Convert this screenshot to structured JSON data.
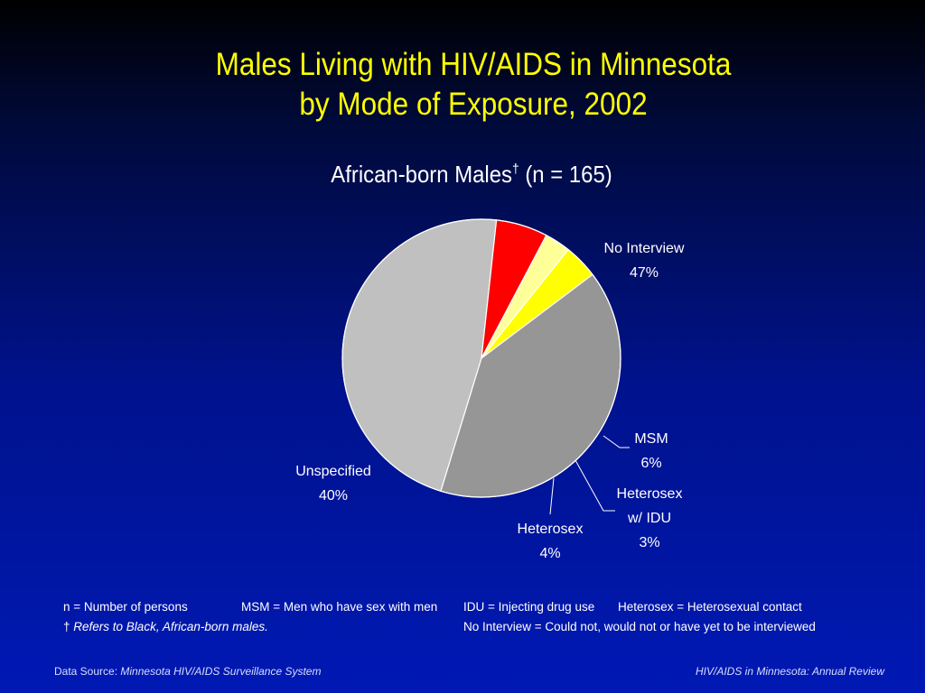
{
  "title_line1": "Males Living with HIV/AIDS in Minnesota",
  "title_line2": "by Mode of Exposure, 2002",
  "subtitle_main": "African-born Males",
  "subtitle_mark": "†",
  "subtitle_n": " (n = 165)",
  "chart_data": {
    "type": "pie",
    "title": "Males Living with HIV/AIDS in Minnesota by Mode of Exposure, 2002",
    "subtitle": "African-born Males† (n = 165)",
    "slices": [
      {
        "label": "No Interview",
        "value": 47,
        "display": "47%",
        "color": "#c0c0c0"
      },
      {
        "label": "MSM",
        "value": 6,
        "display": "6%",
        "color": "#ff0000"
      },
      {
        "label": "Heterosex w/ IDU",
        "value": 3,
        "display": "3%",
        "color": "#ffff99"
      },
      {
        "label": "Heterosex",
        "value": 4,
        "display": "4%",
        "color": "#ffff00"
      },
      {
        "label": "Unspecified",
        "value": 40,
        "display": "40%",
        "color": "#969696"
      }
    ],
    "label_lines": {
      "No Interview": [
        "No Interview"
      ],
      "MSM": [
        "MSM"
      ],
      "Heterosex w/ IDU": [
        "Heterosex",
        "w/ IDU"
      ],
      "Heterosex": [
        "Heterosex"
      ],
      "Unspecified": [
        "Unspecified"
      ]
    }
  },
  "notes": {
    "n_def": "n = Number of persons",
    "msm_def": "MSM = Men who have sex with men",
    "idu_def": "IDU = Injecting drug use",
    "hetero_def": "Heterosex = Heterosexual contact",
    "dagger": "†",
    "dagger_def": "Refers to Black, African-born males.",
    "no_interview_def": "No Interview = Could not, would not or have yet to be interviewed"
  },
  "footer": {
    "source_label": "Data Source:",
    "source_name": "Minnesota HIV/AIDS Surveillance System",
    "report_name": "HIV/AIDS in Minnesota: Annual Review"
  }
}
